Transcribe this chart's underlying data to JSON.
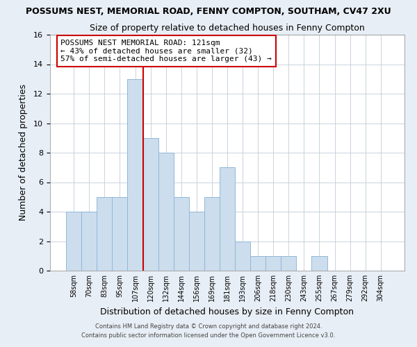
{
  "title1": "POSSUMS NEST, MEMORIAL ROAD, FENNY COMPTON, SOUTHAM, CV47 2XU",
  "title2": "Size of property relative to detached houses in Fenny Compton",
  "xlabel": "Distribution of detached houses by size in Fenny Compton",
  "ylabel": "Number of detached properties",
  "bin_labels": [
    "58sqm",
    "70sqm",
    "83sqm",
    "95sqm",
    "107sqm",
    "120sqm",
    "132sqm",
    "144sqm",
    "156sqm",
    "169sqm",
    "181sqm",
    "193sqm",
    "206sqm",
    "218sqm",
    "230sqm",
    "243sqm",
    "255sqm",
    "267sqm",
    "279sqm",
    "292sqm",
    "304sqm"
  ],
  "bar_heights": [
    4,
    4,
    5,
    5,
    13,
    9,
    8,
    5,
    4,
    5,
    7,
    2,
    1,
    1,
    1,
    0,
    1,
    0,
    0,
    0,
    0
  ],
  "bar_color": "#ccdded",
  "bar_edge_color": "#90b8d8",
  "vline_color": "#cc0000",
  "vline_x": 4.5,
  "ylim": [
    0,
    16
  ],
  "yticks": [
    0,
    2,
    4,
    6,
    8,
    10,
    12,
    14,
    16
  ],
  "annotation_text": "POSSUMS NEST MEMORIAL ROAD: 121sqm\n← 43% of detached houses are smaller (32)\n57% of semi-detached houses are larger (43) →",
  "annotation_box_color": "#ffffff",
  "annotation_box_edge": "#cc0000",
  "footer1": "Contains HM Land Registry data © Crown copyright and database right 2024.",
  "footer2": "Contains public sector information licensed under the Open Government Licence v3.0.",
  "background_color": "#e8eef5",
  "plot_background": "#ffffff",
  "grid_color": "#c0ccd8"
}
